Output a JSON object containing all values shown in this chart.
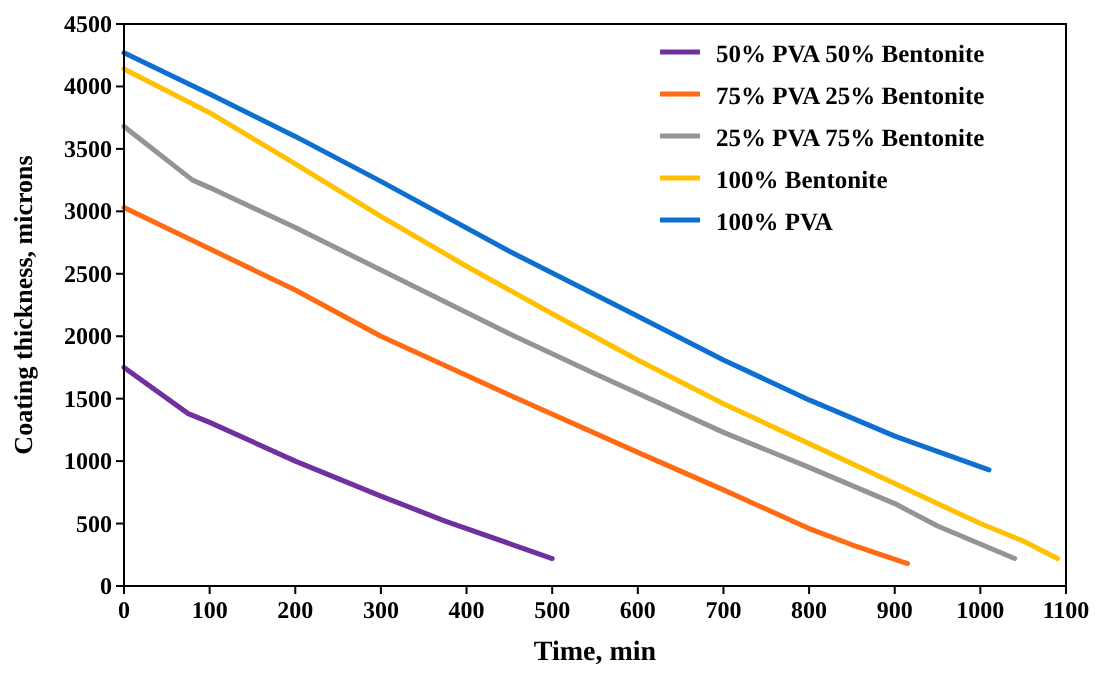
{
  "chart_data": {
    "type": "line",
    "xlabel": "Time, min",
    "ylabel": "Coating thickness, microns",
    "xlim": [
      0,
      1100
    ],
    "ylim": [
      0,
      4500
    ],
    "xticks": [
      0,
      100,
      200,
      300,
      400,
      500,
      600,
      700,
      800,
      900,
      1000,
      1100
    ],
    "yticks": [
      0,
      500,
      1000,
      1500,
      2000,
      2500,
      3000,
      3500,
      4000,
      4500
    ],
    "grid": false,
    "legend": "top right",
    "marker": "none",
    "line_style": "solid",
    "series": [
      {
        "name": "50% PVA 50% Bentonite",
        "color": "#7030a0",
        "x": [
          0,
          75,
          100,
          200,
          300,
          375,
          450,
          500
        ],
        "values": [
          1750,
          1380,
          1310,
          1000,
          720,
          520,
          340,
          220
        ]
      },
      {
        "name": "75% PVA 25% Bentonite",
        "color": "#ff6a13",
        "x": [
          0,
          100,
          200,
          300,
          450,
          600,
          700,
          800,
          850,
          915
        ],
        "values": [
          3030,
          2700,
          2370,
          2000,
          1530,
          1070,
          770,
          460,
          330,
          180
        ]
      },
      {
        "name": "25% PVA 75% Bentonite",
        "color": "#949494",
        "x": [
          0,
          80,
          100,
          200,
          300,
          450,
          550,
          700,
          800,
          900,
          950,
          1040
        ],
        "values": [
          3680,
          3250,
          3190,
          2870,
          2530,
          2020,
          1700,
          1230,
          950,
          660,
          480,
          220
        ]
      },
      {
        "name": "100% Bentonite",
        "color": "#ffc000",
        "x": [
          0,
          100,
          200,
          300,
          400,
          500,
          600,
          700,
          800,
          900,
          1000,
          1050,
          1090
        ],
        "values": [
          4140,
          3790,
          3380,
          2960,
          2560,
          2180,
          1810,
          1460,
          1140,
          820,
          500,
          360,
          220
        ]
      },
      {
        "name": "100% PVA",
        "color": "#0f6fd0",
        "x": [
          0,
          100,
          200,
          300,
          450,
          600,
          700,
          800,
          900,
          1010
        ],
        "values": [
          4270,
          3940,
          3600,
          3240,
          2680,
          2160,
          1810,
          1490,
          1200,
          930
        ]
      }
    ]
  }
}
